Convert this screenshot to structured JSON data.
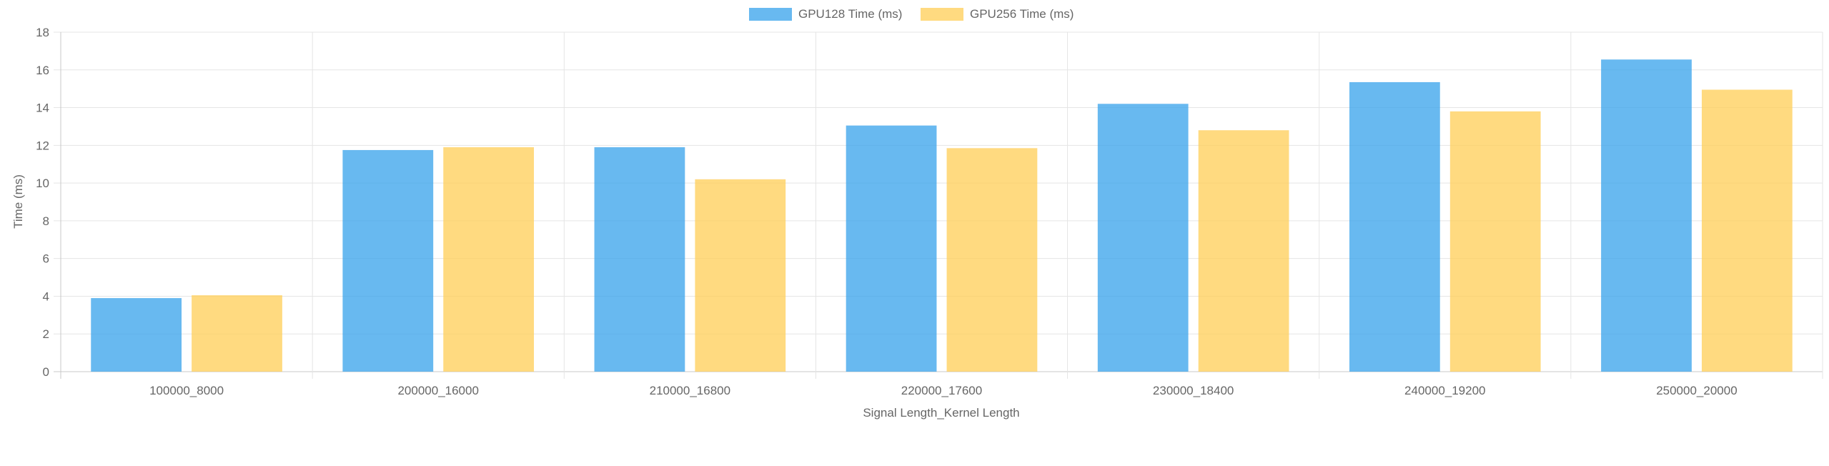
{
  "chart_data": {
    "type": "bar",
    "title": "",
    "xlabel": "Signal Length_Kernel Length",
    "ylabel": "Time (ms)",
    "ylim": [
      0,
      18
    ],
    "yticks": [
      0,
      2,
      4,
      6,
      8,
      10,
      12,
      14,
      16,
      18
    ],
    "grid": true,
    "legend_position": "top-center",
    "categories": [
      "100000_8000",
      "200000_16000",
      "210000_16800",
      "220000_17600",
      "230000_18400",
      "240000_19200",
      "250000_20000"
    ],
    "series": [
      {
        "name": "GPU128 Time (ms)",
        "color": "#36a2eb",
        "values": [
          3.9,
          11.75,
          11.9,
          13.05,
          14.2,
          15.35,
          16.55
        ]
      },
      {
        "name": "GPU256 Time (ms)",
        "color": "#ffcd56",
        "values": [
          4.05,
          11.9,
          10.2,
          11.85,
          12.8,
          13.8,
          14.95
        ]
      }
    ]
  }
}
